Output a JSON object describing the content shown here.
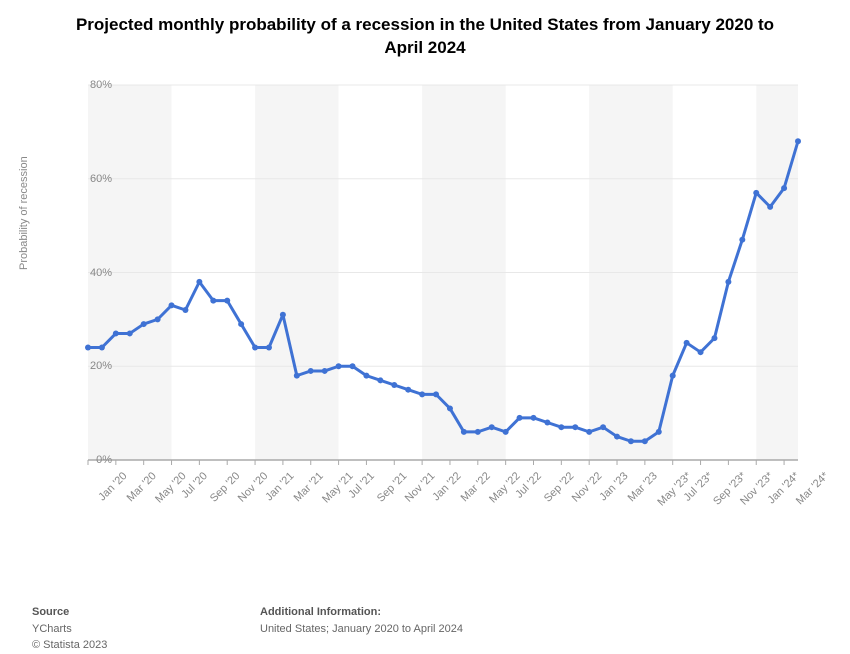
{
  "chart": {
    "type": "line",
    "title": "Projected monthly probability of a recession in the United States from January 2020 to April 2024",
    "ylabel": "Probability of recession",
    "ylim": [
      0,
      80
    ],
    "ytick_step": 20,
    "ytick_suffix": "%",
    "background_band_color": "#f5f5f5",
    "background_color": "#ffffff",
    "grid_color": "#e8e8e8",
    "axis_color": "#aaaaaa",
    "line_color": "#3f72d4",
    "line_width": 3,
    "marker_radius": 3,
    "title_fontsize": 17,
    "label_fontsize": 11,
    "label_color": "#888888",
    "x_labels_shown": [
      "Jan '20",
      "Mar '20",
      "May '20",
      "Jul '20",
      "Sep '20",
      "Nov '20",
      "Jan '21",
      "Mar '21",
      "May '21",
      "Jul '21",
      "Sep '21",
      "Nov '21",
      "Jan '22",
      "Mar '22",
      "May '22",
      "Jul '22",
      "Sep '22",
      "Nov '22",
      "Jan '23",
      "Mar '23",
      "May '23*",
      "Jul '23*",
      "Sep '23*",
      "Nov '23*",
      "Jan '24*",
      "Mar '24*"
    ],
    "data": [
      {
        "label": "Jan '20",
        "value": 24
      },
      {
        "label": "Feb '20",
        "value": 24
      },
      {
        "label": "Mar '20",
        "value": 27
      },
      {
        "label": "Apr '20",
        "value": 27
      },
      {
        "label": "May '20",
        "value": 29
      },
      {
        "label": "Jun '20",
        "value": 30
      },
      {
        "label": "Jul '20",
        "value": 33
      },
      {
        "label": "Aug '20",
        "value": 32
      },
      {
        "label": "Sep '20",
        "value": 38
      },
      {
        "label": "Oct '20",
        "value": 34
      },
      {
        "label": "Nov '20",
        "value": 34
      },
      {
        "label": "Dec '20",
        "value": 29
      },
      {
        "label": "Jan '21",
        "value": 24
      },
      {
        "label": "Feb '21",
        "value": 24
      },
      {
        "label": "Mar '21",
        "value": 31
      },
      {
        "label": "Apr '21",
        "value": 18
      },
      {
        "label": "May '21",
        "value": 19
      },
      {
        "label": "Jun '21",
        "value": 19
      },
      {
        "label": "Jul '21",
        "value": 20
      },
      {
        "label": "Aug '21",
        "value": 20
      },
      {
        "label": "Sep '21",
        "value": 18
      },
      {
        "label": "Oct '21",
        "value": 17
      },
      {
        "label": "Nov '21",
        "value": 16
      },
      {
        "label": "Dec '21",
        "value": 15
      },
      {
        "label": "Jan '22",
        "value": 14
      },
      {
        "label": "Feb '22",
        "value": 14
      },
      {
        "label": "Mar '22",
        "value": 11
      },
      {
        "label": "Apr '22",
        "value": 6
      },
      {
        "label": "May '22",
        "value": 6
      },
      {
        "label": "Jun '22",
        "value": 7
      },
      {
        "label": "Jul '22",
        "value": 6
      },
      {
        "label": "Aug '22",
        "value": 9
      },
      {
        "label": "Sep '22",
        "value": 9
      },
      {
        "label": "Oct '22",
        "value": 8
      },
      {
        "label": "Nov '22",
        "value": 7
      },
      {
        "label": "Dec '22",
        "value": 7
      },
      {
        "label": "Jan '23",
        "value": 6
      },
      {
        "label": "Feb '23",
        "value": 7
      },
      {
        "label": "Mar '23",
        "value": 5
      },
      {
        "label": "Apr '23",
        "value": 4
      },
      {
        "label": "May '23*",
        "value": 4
      },
      {
        "label": "Jun '23*",
        "value": 6
      },
      {
        "label": "Jul '23*",
        "value": 18
      },
      {
        "label": "Aug '23*",
        "value": 25
      },
      {
        "label": "Sep '23*",
        "value": 23
      },
      {
        "label": "Oct '23*",
        "value": 26
      },
      {
        "label": "Nov '23*",
        "value": 38
      },
      {
        "label": "Dec '23*",
        "value": 47
      },
      {
        "label": "Jan '24*",
        "value": 57
      },
      {
        "label": "Feb '24*",
        "value": 54
      },
      {
        "label": "Mar '24*",
        "value": 58
      },
      {
        "label": "Apr '24*",
        "value": 68
      }
    ]
  },
  "footer": {
    "source_label": "Source",
    "source_value": "YCharts",
    "copyright": "© Statista 2023",
    "additional_label": "Additional Information:",
    "additional_value": "United States; January 2020 to April 2024"
  }
}
